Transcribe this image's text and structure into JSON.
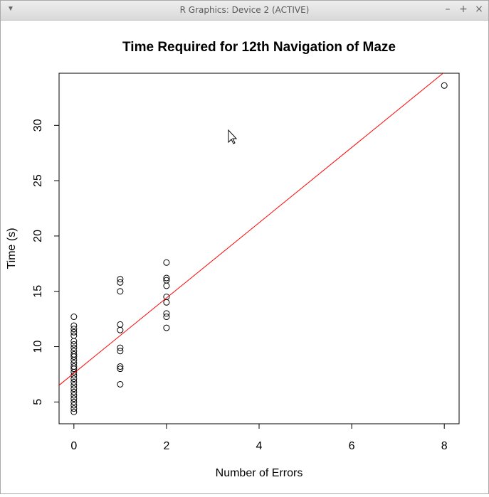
{
  "window": {
    "title": "R Graphics: Device 2 (ACTIVE)",
    "menu_icon": "triangle-down",
    "minimize_icon": "minus",
    "maximize_icon": "plus",
    "close_icon": "x",
    "minimize_glyph": "–",
    "maximize_glyph": "+",
    "close_glyph": "×"
  },
  "chart_data": {
    "type": "scatter",
    "title": "Time Required for 12th Navigation of Maze",
    "xlabel": "Number of Errors",
    "ylabel": "Time (s)",
    "xlim": [
      -0.32,
      8.32
    ],
    "ylim": [
      3.03,
      34.71
    ],
    "x_ticks": [
      0,
      2,
      4,
      6,
      8
    ],
    "y_ticks": [
      5,
      10,
      15,
      20,
      25,
      30
    ],
    "grid": false,
    "legend": "none",
    "point_color": "#000000",
    "line_color": "#ff0000",
    "series": [
      {
        "points": [
          {
            "x": 0,
            "y": 12.7
          },
          {
            "x": 0,
            "y": 11.9
          },
          {
            "x": 0,
            "y": 11.6
          },
          {
            "x": 0,
            "y": 11.3
          },
          {
            "x": 0,
            "y": 11.0
          },
          {
            "x": 0,
            "y": 10.5
          },
          {
            "x": 0,
            "y": 10.2
          },
          {
            "x": 0,
            "y": 9.9
          },
          {
            "x": 0,
            "y": 9.6
          },
          {
            "x": 0,
            "y": 9.3
          },
          {
            "x": 0,
            "y": 9.1
          },
          {
            "x": 0,
            "y": 8.8
          },
          {
            "x": 0,
            "y": 8.5
          },
          {
            "x": 0,
            "y": 8.2
          },
          {
            "x": 0,
            "y": 8.0
          },
          {
            "x": 0,
            "y": 7.7
          },
          {
            "x": 0,
            "y": 7.4
          },
          {
            "x": 0,
            "y": 7.1
          },
          {
            "x": 0,
            "y": 6.8
          },
          {
            "x": 0,
            "y": 6.5
          },
          {
            "x": 0,
            "y": 6.2
          },
          {
            "x": 0,
            "y": 5.9
          },
          {
            "x": 0,
            "y": 5.6
          },
          {
            "x": 0,
            "y": 5.3
          },
          {
            "x": 0,
            "y": 5.0
          },
          {
            "x": 0,
            "y": 4.7
          },
          {
            "x": 0,
            "y": 4.4
          },
          {
            "x": 0,
            "y": 4.1
          },
          {
            "x": 1,
            "y": 16.1
          },
          {
            "x": 1,
            "y": 15.8
          },
          {
            "x": 1,
            "y": 15.0
          },
          {
            "x": 1,
            "y": 12.0
          },
          {
            "x": 1,
            "y": 11.5
          },
          {
            "x": 1,
            "y": 9.9
          },
          {
            "x": 1,
            "y": 9.6
          },
          {
            "x": 1,
            "y": 8.2
          },
          {
            "x": 1,
            "y": 8.0
          },
          {
            "x": 1,
            "y": 6.6
          },
          {
            "x": 2,
            "y": 17.6
          },
          {
            "x": 2,
            "y": 16.2
          },
          {
            "x": 2,
            "y": 16.0
          },
          {
            "x": 2,
            "y": 15.5
          },
          {
            "x": 2,
            "y": 14.5
          },
          {
            "x": 2,
            "y": 14.0
          },
          {
            "x": 2,
            "y": 13.0
          },
          {
            "x": 2,
            "y": 12.7
          },
          {
            "x": 2,
            "y": 11.7
          },
          {
            "x": 8,
            "y": 33.6
          }
        ]
      }
    ],
    "fit_line": {
      "intercept": 7.6,
      "slope": 3.4
    }
  }
}
